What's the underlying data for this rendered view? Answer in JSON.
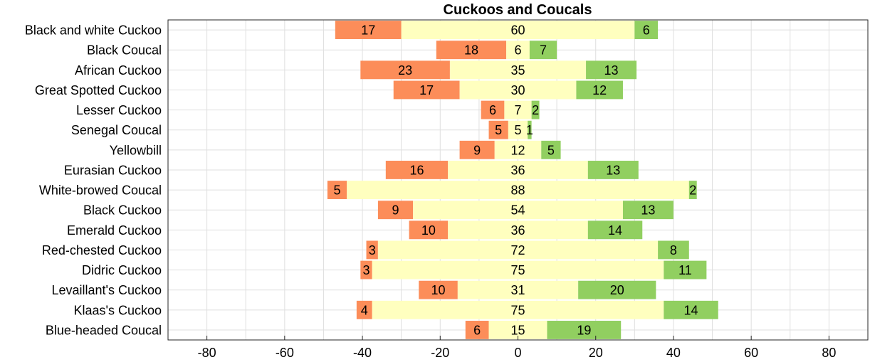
{
  "chart_data": {
    "type": "bar",
    "orientation": "horizontal",
    "stacked": "diverging",
    "title": "Cuckoos and Coucals",
    "xlabel": "",
    "ylabel": "",
    "xlim": [
      -90,
      90
    ],
    "xticks": [
      -80,
      -60,
      -40,
      -20,
      0,
      20,
      40,
      60,
      80
    ],
    "grid": true,
    "categories": [
      "Black and white Cuckoo",
      "Black Coucal",
      "African Cuckoo",
      "Great Spotted Cuckoo",
      "Lesser Cuckoo",
      "Senegal Coucal",
      "Yellowbill",
      "Eurasian Cuckoo",
      "White-browed Coucal",
      "Black Cuckoo",
      "Emerald Cuckoo",
      "Red-chested Cuckoo",
      "Didric Cuckoo",
      "Levaillant's Cuckoo",
      "Klaas's Cuckoo",
      "Blue-headed Coucal"
    ],
    "series": [
      {
        "color": "#FC8D59",
        "placement": "left",
        "values": [
          17,
          18,
          23,
          17,
          6,
          5,
          9,
          16,
          5,
          9,
          10,
          3,
          3,
          10,
          4,
          6
        ]
      },
      {
        "color": "#FFFFBF",
        "placement": "center",
        "values": [
          60,
          6,
          35,
          30,
          7,
          5,
          12,
          36,
          88,
          54,
          36,
          72,
          75,
          31,
          75,
          15
        ]
      },
      {
        "color": "#91CF60",
        "placement": "right",
        "values": [
          6,
          7,
          13,
          12,
          2,
          1,
          5,
          13,
          2,
          13,
          14,
          8,
          11,
          20,
          14,
          19
        ]
      }
    ]
  }
}
